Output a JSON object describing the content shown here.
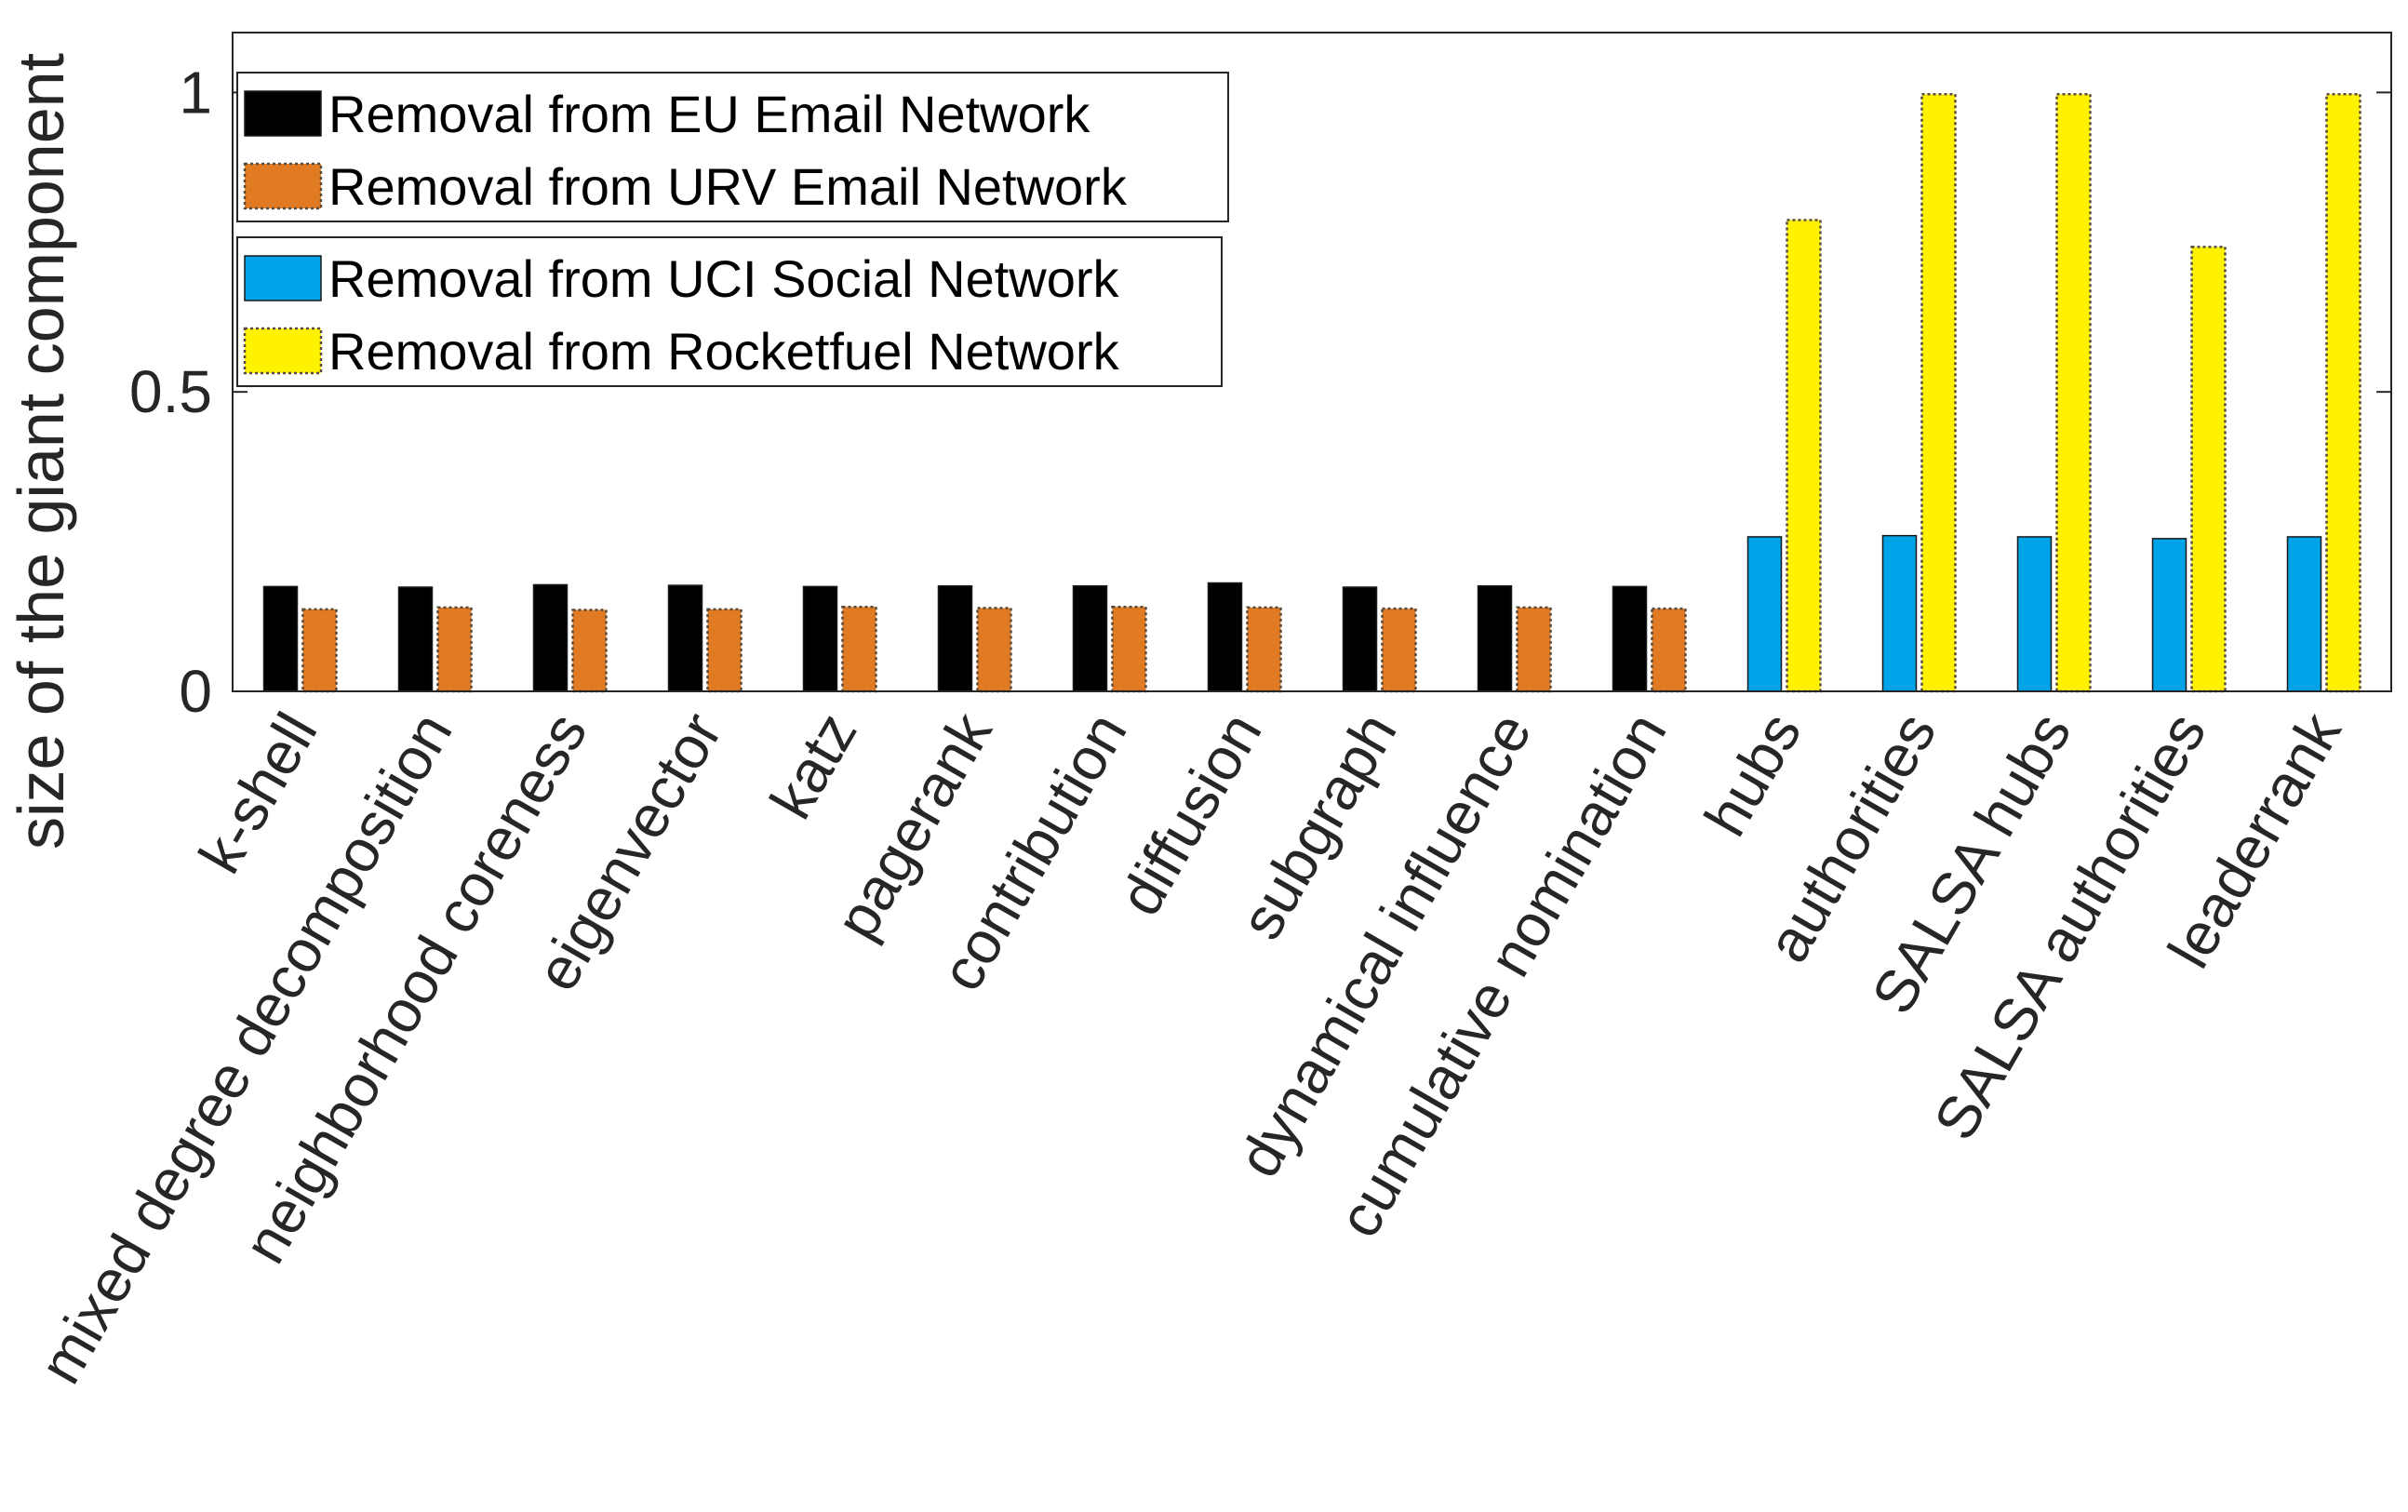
{
  "chart_data": {
    "type": "bar",
    "ylabel": "size of the giant component",
    "xlabel": "",
    "ylim": [
      0,
      1.1
    ],
    "yticks": [
      0,
      0.5,
      1
    ],
    "ytick_labels": [
      "0",
      "0.5",
      "1"
    ],
    "grid": false,
    "categories": [
      "k-shell",
      "mixed degree decomposition",
      "neighborhood coreness",
      "eigenvector",
      "katz",
      "pagerank",
      "contribution",
      "diffusion",
      "subgraph",
      "dynamical influence",
      "cumulative nomination",
      "hubs",
      "authorities",
      "SALSA hubs",
      "SALSA authorities",
      "leaderrank"
    ],
    "series": [
      {
        "name": "Removal from EU Email Network",
        "color": "#000000",
        "slot": 0,
        "values": [
          0.175,
          0.174,
          0.178,
          0.177,
          0.175,
          0.176,
          0.176,
          0.181,
          0.174,
          0.176,
          0.175,
          null,
          null,
          null,
          null,
          null
        ]
      },
      {
        "name": "Removal from URV Email Network",
        "color": "#E07B24",
        "slot": 1,
        "values": [
          0.137,
          0.14,
          0.136,
          0.137,
          0.141,
          0.139,
          0.141,
          0.14,
          0.138,
          0.14,
          0.138,
          null,
          null,
          null,
          null,
          null
        ]
      },
      {
        "name": "Removal from UCI Social Network",
        "color": "#00A3E8",
        "slot": 0,
        "values": [
          null,
          null,
          null,
          null,
          null,
          null,
          null,
          null,
          null,
          null,
          null,
          0.258,
          0.26,
          0.258,
          0.255,
          0.258
        ]
      },
      {
        "name": "Removal from Rocketfuel Network",
        "color": "#FFF200",
        "slot": 1,
        "values": [
          null,
          null,
          null,
          null,
          null,
          null,
          null,
          null,
          null,
          null,
          null,
          0.787,
          0.997,
          0.997,
          0.742,
          0.997
        ]
      }
    ],
    "legends": [
      {
        "placement": "top-left",
        "entries": [
          "Removal from EU Email Network",
          "Removal from URV Email Network"
        ]
      },
      {
        "placement": "top-left",
        "entries": [
          "Removal from UCI Social Network",
          "Removal from Rocketfuel Network"
        ]
      }
    ]
  }
}
